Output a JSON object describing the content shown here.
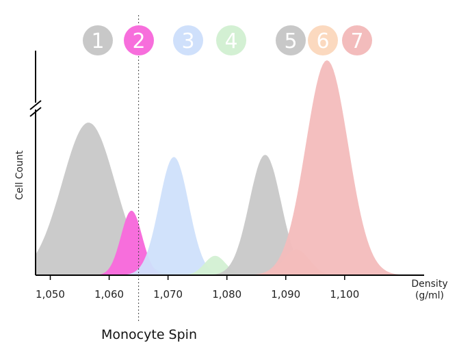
{
  "chart_data": {
    "type": "area",
    "xlabel": "Density",
    "xlabel_unit": "(g/ml)",
    "ylabel": "Cell Count",
    "xlim": [
      1.0475,
      1.1135
    ],
    "ylim": [
      0,
      100
    ],
    "y_axis_broken": true,
    "grid": false,
    "x_ticks": [
      {
        "value": 1.05,
        "label": "1,050"
      },
      {
        "value": 1.06,
        "label": "1,060"
      },
      {
        "value": 1.07,
        "label": "1,070"
      },
      {
        "value": 1.08,
        "label": "1,080"
      },
      {
        "value": 1.09,
        "label": "1,090"
      },
      {
        "value": 1.1,
        "label": "1,100"
      }
    ],
    "marker": {
      "label": "Monocyte Spin",
      "x": 1.065
    },
    "series": [
      {
        "name": "1",
        "color": "#c8c8c8",
        "peak_x": 1.0565,
        "peak_y": 71,
        "spread": 0.0045,
        "opacity": 0.95
      },
      {
        "name": "2",
        "color": "#f76edc",
        "peak_x": 1.0638,
        "peak_y": 30,
        "spread": 0.0018,
        "opacity": 1.0
      },
      {
        "name": "3",
        "color": "#cfe0fb",
        "peak_x": 1.071,
        "peak_y": 55,
        "spread": 0.0025,
        "opacity": 0.95
      },
      {
        "name": "4",
        "color": "#d3f0d3",
        "peak_x": 1.078,
        "peak_y": 9,
        "spread": 0.0018,
        "opacity": 0.95
      },
      {
        "name": "5",
        "color": "#c8c8c8",
        "peak_x": 1.0865,
        "peak_y": 56,
        "spread": 0.0027,
        "opacity": 0.95
      },
      {
        "name": "6",
        "color": "#fbd9bf",
        "peak_x": 1.0918,
        "peak_y": 12,
        "spread": 0.0022,
        "opacity": 0.95
      },
      {
        "name": "7",
        "color": "#f3bcbc",
        "peak_x": 1.097,
        "peak_y": 100,
        "spread": 0.0036,
        "opacity": 0.95
      }
    ]
  }
}
